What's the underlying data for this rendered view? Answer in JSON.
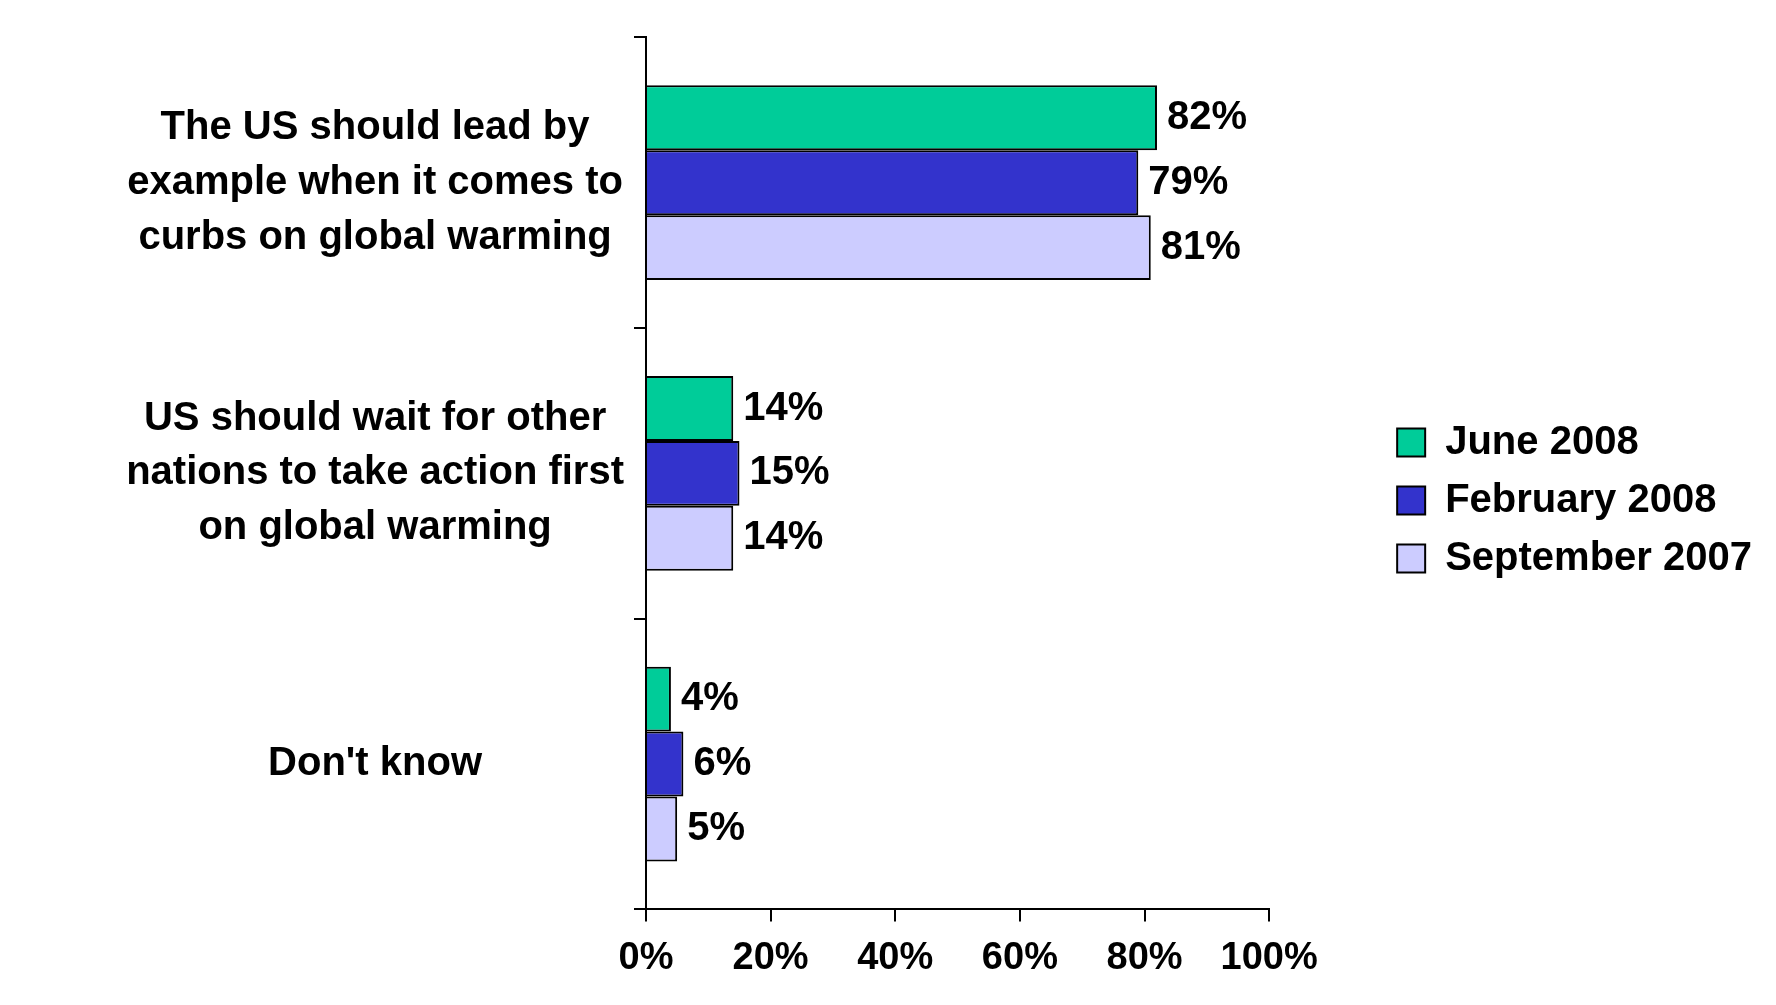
{
  "chart_data": {
    "type": "bar",
    "orientation": "horizontal",
    "categories": [
      "The US should lead by example when it comes to curbs on global warming",
      "US should wait for other nations to take action first on global warming",
      "Don't know"
    ],
    "series": [
      {
        "name": "June 2008",
        "color": "#00cc99",
        "values": [
          82,
          14,
          4
        ],
        "value_labels": [
          "82%",
          "14%",
          "4%"
        ]
      },
      {
        "name": "February 2008",
        "color": "#3333cc",
        "values": [
          79,
          15,
          6
        ],
        "value_labels": [
          "79%",
          "15%",
          "6%"
        ]
      },
      {
        "name": "September 2007",
        "color": "#ccccff",
        "values": [
          81,
          14,
          5
        ],
        "value_labels": [
          "81%",
          "14%",
          "5%"
        ]
      }
    ],
    "xlim": [
      0,
      100
    ],
    "xticks": [
      {
        "value": 0,
        "label": "0%"
      },
      {
        "value": 20,
        "label": "20%"
      },
      {
        "value": 40,
        "label": "40%"
      },
      {
        "value": 60,
        "label": "60%"
      },
      {
        "value": 80,
        "label": "80%"
      },
      {
        "value": 100,
        "label": "100%"
      }
    ],
    "grid": false,
    "legend": "right"
  }
}
